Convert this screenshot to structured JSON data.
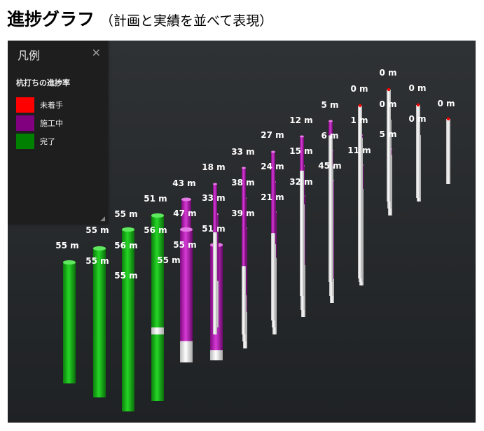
{
  "heading": {
    "title": "進捗グラフ",
    "subtitle": "（計画と実績を並べて表現）"
  },
  "legend": {
    "title": "凡例",
    "close_icon": "close-icon",
    "section_title": "杭打ちの進捗率",
    "items": [
      {
        "label": "未着手",
        "color": "#ff0000"
      },
      {
        "label": "施工中",
        "color": "#800080"
      },
      {
        "label": "完了",
        "color": "#008000"
      }
    ]
  },
  "chart_data": {
    "type": "3d-bar",
    "title": "",
    "unit": "m",
    "status_colors": {
      "not_started": "#ff0000",
      "in_progress": "#aa12aa",
      "done": "#12b312"
    },
    "piles": [
      {
        "label": "55 m",
        "value": 55,
        "status": "done"
      },
      {
        "label": "55 m",
        "value": 55,
        "status": "done"
      },
      {
        "label": "55 m",
        "value": 55,
        "status": "done"
      },
      {
        "label": "55 m",
        "value": 55,
        "status": "done"
      },
      {
        "label": "56 m",
        "value": 56,
        "status": "done"
      },
      {
        "label": "55 m",
        "value": 55,
        "status": "done"
      },
      {
        "label": "55 m",
        "value": 55,
        "status": "done"
      },
      {
        "label": "56 m",
        "value": 56,
        "status": "done"
      },
      {
        "label": "51 m",
        "value": 51,
        "status": "in_progress"
      },
      {
        "label": "55 m",
        "value": 55,
        "status": "done"
      },
      {
        "label": "47 m",
        "value": 47,
        "status": "in_progress"
      },
      {
        "label": "43 m",
        "value": 43,
        "status": "in_progress"
      },
      {
        "label": "51 m",
        "value": 51,
        "status": "in_progress"
      },
      {
        "label": "33 m",
        "value": 33,
        "status": "in_progress"
      },
      {
        "label": "18 m",
        "value": 18,
        "status": "in_progress"
      },
      {
        "label": "39 m",
        "value": 39,
        "status": "in_progress"
      },
      {
        "label": "38 m",
        "value": 38,
        "status": "in_progress"
      },
      {
        "label": "33 m",
        "value": 33,
        "status": "in_progress"
      },
      {
        "label": "21 m",
        "value": 21,
        "status": "in_progress"
      },
      {
        "label": "24 m",
        "value": 24,
        "status": "in_progress"
      },
      {
        "label": "27 m",
        "value": 27,
        "status": "in_progress"
      },
      {
        "label": "32 m",
        "value": 32,
        "status": "in_progress"
      },
      {
        "label": "15 m",
        "value": 15,
        "status": "in_progress"
      },
      {
        "label": "12 m",
        "value": 12,
        "status": "in_progress"
      },
      {
        "label": "45 m",
        "value": 45,
        "status": "in_progress"
      },
      {
        "label": "6 m",
        "value": 6,
        "status": "in_progress"
      },
      {
        "label": "5 m",
        "value": 5,
        "status": "in_progress"
      },
      {
        "label": "11 m",
        "value": 11,
        "status": "in_progress"
      },
      {
        "label": "1 m",
        "value": 1,
        "status": "in_progress"
      },
      {
        "label": "0 m",
        "value": 0,
        "status": "not_started"
      },
      {
        "label": "5 m",
        "value": 5,
        "status": "in_progress"
      },
      {
        "label": "0 m",
        "value": 0,
        "status": "not_started"
      },
      {
        "label": "0 m",
        "value": 0,
        "status": "not_started"
      },
      {
        "label": "0 m",
        "value": 0,
        "status": "not_started"
      },
      {
        "label": "0 m",
        "value": 0,
        "status": "not_started"
      },
      {
        "label": "0 m",
        "value": 0,
        "status": "not_started"
      }
    ]
  }
}
